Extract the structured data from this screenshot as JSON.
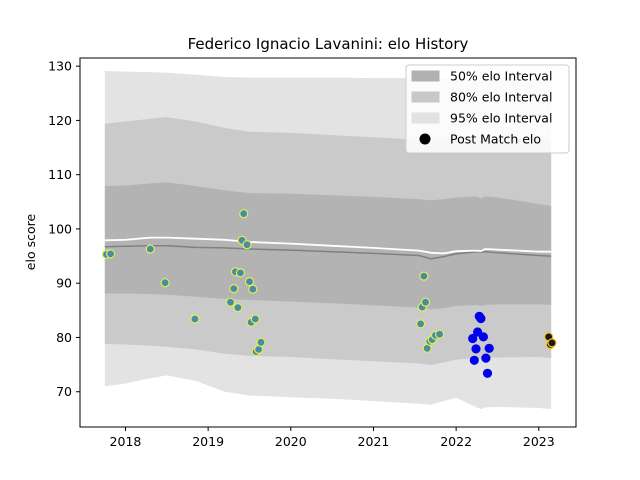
{
  "chart_data": {
    "type": "scatter",
    "title": "Federico Ignacio Lavanini: elo History",
    "xlabel": "",
    "ylabel": "elo score",
    "xlim": [
      2017.45,
      2023.45
    ],
    "ylim": [
      63.5,
      131.5
    ],
    "x_ticks": [
      2018,
      2019,
      2020,
      2021,
      2022,
      2023
    ],
    "y_ticks": [
      70,
      80,
      90,
      100,
      110,
      120,
      130
    ],
    "legend_position": "top-right",
    "legend": [
      {
        "label": "50% elo Interval",
        "kind": "band",
        "color": "#b0b0b0"
      },
      {
        "label": "80% elo Interval",
        "kind": "band",
        "color": "#c8c8c8"
      },
      {
        "label": "95% elo Interval",
        "kind": "band",
        "color": "#e2e2e2"
      },
      {
        "label": "Post Match elo",
        "kind": "point",
        "color": "#000000"
      }
    ],
    "bands": {
      "x": [
        2017.75,
        2018.0,
        2018.3,
        2018.5,
        2018.85,
        2019.2,
        2019.5,
        2020.0,
        2020.5,
        2021.0,
        2021.55,
        2021.7,
        2021.85,
        2022.0,
        2022.25,
        2022.3,
        2022.35,
        2022.5,
        2023.0,
        2023.15
      ],
      "p50_low": [
        88.1,
        88.1,
        88.0,
        87.9,
        87.5,
        87.1,
        86.9,
        86.6,
        86.3,
        85.9,
        85.5,
        85.2,
        85.4,
        85.8,
        86.0,
        85.8,
        86.0,
        86.1,
        86.1,
        86.0
      ],
      "p50_high": [
        107.9,
        108.0,
        108.4,
        108.6,
        107.9,
        107.1,
        106.6,
        106.5,
        106.2,
        105.9,
        105.5,
        105.3,
        105.5,
        105.8,
        106.0,
        105.6,
        106.0,
        105.8,
        104.6,
        104.2
      ],
      "p80_low": [
        78.8,
        78.7,
        78.5,
        78.3,
        77.8,
        77.0,
        76.6,
        76.4,
        76.0,
        75.6,
        75.2,
        74.9,
        75.4,
        75.9,
        76.2,
        76.0,
        76.3,
        76.3,
        76.4,
        76.2
      ],
      "p80_high": [
        119.4,
        119.8,
        120.3,
        120.6,
        119.8,
        118.6,
        117.9,
        117.7,
        117.3,
        116.9,
        116.4,
        116.3,
        116.5,
        116.8,
        117.1,
        116.8,
        117.0,
        116.9,
        116.6,
        116.2
      ],
      "p95_low": [
        71.0,
        71.5,
        72.5,
        73.0,
        72.0,
        70.0,
        69.3,
        69.0,
        68.7,
        68.3,
        67.8,
        67.6,
        68.3,
        68.9,
        67.1,
        66.8,
        67.1,
        67.2,
        67.0,
        66.8
      ],
      "p95_high": [
        129.1,
        129.0,
        128.9,
        128.8,
        128.4,
        128.0,
        127.9,
        127.9,
        127.9,
        127.8,
        127.8,
        127.8,
        127.8,
        127.6,
        127.5,
        127.5,
        127.5,
        127.4,
        127.4,
        127.4
      ],
      "median": [
        96.7,
        96.8,
        96.9,
        96.9,
        96.6,
        96.5,
        96.3,
        96.1,
        95.8,
        95.5,
        95.1,
        94.5,
        94.9,
        95.4,
        95.8,
        95.7,
        95.8,
        95.6,
        95.1,
        95.0
      ],
      "mean": [
        97.9,
        98.0,
        98.4,
        98.4,
        98.2,
        98.0,
        97.6,
        97.3,
        96.9,
        96.5,
        96.0,
        95.6,
        95.5,
        95.9,
        96.0,
        95.9,
        96.3,
        96.2,
        95.8,
        95.8
      ]
    },
    "series": [
      {
        "fill": "#4a8ca8",
        "edge": "#e0f050",
        "points": [
          [
            2017.77,
            95.3
          ],
          [
            2017.82,
            95.4
          ],
          [
            2018.3,
            96.3
          ],
          [
            2018.48,
            90.1
          ],
          [
            2018.84,
            83.4
          ],
          [
            2019.27,
            86.5
          ],
          [
            2019.31,
            89.0
          ],
          [
            2019.33,
            92.1
          ],
          [
            2019.36,
            85.5
          ],
          [
            2019.39,
            91.9
          ],
          [
            2019.41,
            97.9
          ],
          [
            2019.43,
            102.8
          ],
          [
            2019.47,
            97.1
          ],
          [
            2019.5,
            90.3
          ],
          [
            2019.52,
            82.8
          ],
          [
            2019.54,
            88.9
          ],
          [
            2019.57,
            83.4
          ],
          [
            2019.58,
            77.4
          ],
          [
            2019.61,
            77.8
          ],
          [
            2019.64,
            79.1
          ],
          [
            2021.57,
            82.5
          ],
          [
            2021.59,
            85.6
          ],
          [
            2021.61,
            91.3
          ],
          [
            2021.63,
            86.5
          ],
          [
            2021.65,
            78.0
          ],
          [
            2021.68,
            79.3
          ],
          [
            2021.71,
            79.6
          ],
          [
            2021.75,
            80.4
          ],
          [
            2021.8,
            80.6
          ]
        ]
      },
      {
        "fill": "#0000ee",
        "edge": "#0000ee",
        "points": [
          [
            2022.2,
            79.8
          ],
          [
            2022.22,
            75.8
          ],
          [
            2022.24,
            77.9
          ],
          [
            2022.26,
            81.0
          ],
          [
            2022.28,
            83.9
          ],
          [
            2022.3,
            83.5
          ],
          [
            2022.33,
            80.1
          ],
          [
            2022.36,
            76.2
          ],
          [
            2022.38,
            73.4
          ],
          [
            2022.4,
            78.0
          ]
        ]
      },
      {
        "fill": "#1a1a1a",
        "edge": "#f0c020",
        "points": [
          [
            2023.12,
            80.1
          ],
          [
            2023.14,
            78.7
          ],
          [
            2023.16,
            79.0
          ]
        ]
      }
    ]
  }
}
